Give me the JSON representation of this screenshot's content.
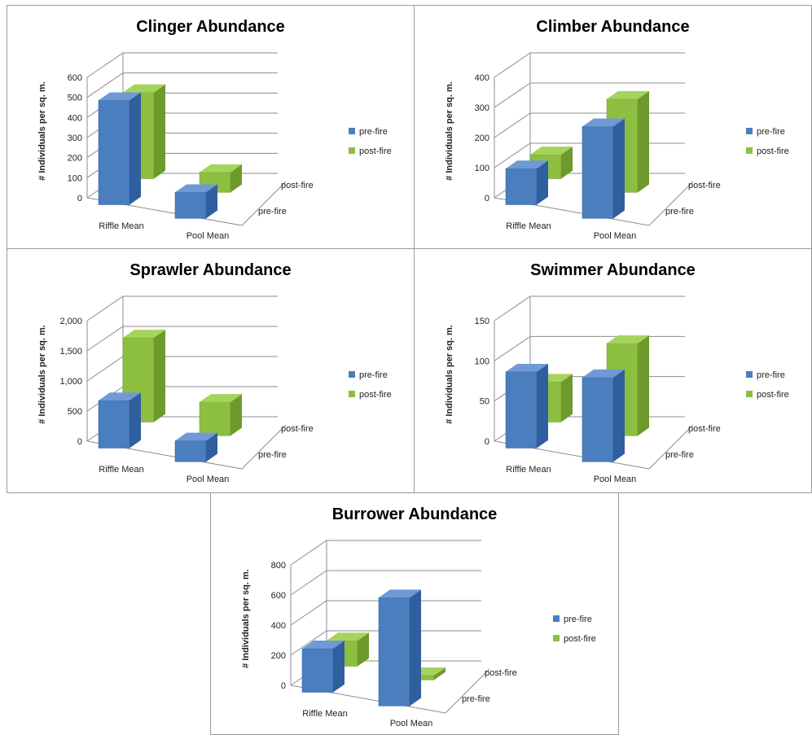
{
  "colors": {
    "pre": "#4a7ebf",
    "pre_light": "#6f9ad6",
    "pre_dark": "#2f5f9e",
    "post": "#8cbf3f",
    "post_light": "#a6d35c",
    "post_dark": "#6e9a2b"
  },
  "chart_data": [
    {
      "type": "bar",
      "title": "Clinger Abundance",
      "ylabel": "# Individuals per sq. m.",
      "categories": [
        "Riffle Mean",
        "Pool Mean"
      ],
      "depth_categories": [
        "pre-fire",
        "post-fire"
      ],
      "yticks": [
        "0",
        "100",
        "200",
        "300",
        "400",
        "500",
        "600"
      ],
      "ylim": [
        0,
        600
      ],
      "series": [
        {
          "name": "pre-fire",
          "values": [
            520,
            130
          ]
        },
        {
          "name": "post-fire",
          "values": [
            430,
            100
          ]
        }
      ],
      "legend": [
        "pre-fire",
        "post-fire"
      ],
      "legend_position": "right"
    },
    {
      "type": "bar",
      "title": "Climber Abundance",
      "ylabel": "# Individuals per sq. m.",
      "categories": [
        "Riffle Mean",
        "Pool Mean"
      ],
      "depth_categories": [
        "pre-fire",
        "post-fire"
      ],
      "yticks": [
        "0",
        "100",
        "200",
        "300",
        "400"
      ],
      "ylim": [
        0,
        400
      ],
      "series": [
        {
          "name": "pre-fire",
          "values": [
            120,
            305
          ]
        },
        {
          "name": "post-fire",
          "values": [
            80,
            310
          ]
        }
      ],
      "legend": [
        "pre-fire",
        "post-fire"
      ],
      "legend_position": "right"
    },
    {
      "type": "bar",
      "title": "Sprawler Abundance",
      "ylabel": "# Individuals per sq. m.",
      "categories": [
        "Riffle Mean",
        "Pool Mean"
      ],
      "depth_categories": [
        "pre-fire",
        "post-fire"
      ],
      "yticks": [
        "0",
        "500",
        "1,000",
        "1,500",
        "2,000"
      ],
      "ylim": [
        0,
        2000
      ],
      "series": [
        {
          "name": "pre-fire",
          "values": [
            790,
            350
          ]
        },
        {
          "name": "post-fire",
          "values": [
            1400,
            560
          ]
        }
      ],
      "legend": [
        "pre-fire",
        "post-fire"
      ],
      "legend_position": "right"
    },
    {
      "type": "bar",
      "title": "Swimmer Abundance",
      "ylabel": "# Individuals per sq. m.",
      "categories": [
        "Riffle Mean",
        "Pool Mean"
      ],
      "depth_categories": [
        "pre-fire",
        "post-fire"
      ],
      "yticks": [
        "0",
        "50",
        "100",
        "150"
      ],
      "ylim": [
        0,
        150
      ],
      "series": [
        {
          "name": "pre-fire",
          "values": [
            95,
            105
          ]
        },
        {
          "name": "post-fire",
          "values": [
            50,
            115
          ]
        }
      ],
      "legend": [
        "pre-fire",
        "post-fire"
      ],
      "legend_position": "right"
    },
    {
      "type": "bar",
      "title": "Burrower Abundance",
      "ylabel": "# Individuals per sq. m.",
      "categories": [
        "Riffle Mean",
        "Pool Mean"
      ],
      "depth_categories": [
        "pre-fire",
        "post-fire"
      ],
      "yticks": [
        "0",
        "200",
        "400",
        "600",
        "800"
      ],
      "ylim": [
        0,
        800
      ],
      "series": [
        {
          "name": "pre-fire",
          "values": [
            290,
            720
          ]
        },
        {
          "name": "post-fire",
          "values": [
            170,
            30
          ]
        }
      ],
      "legend": [
        "pre-fire",
        "post-fire"
      ],
      "legend_position": "right"
    }
  ]
}
